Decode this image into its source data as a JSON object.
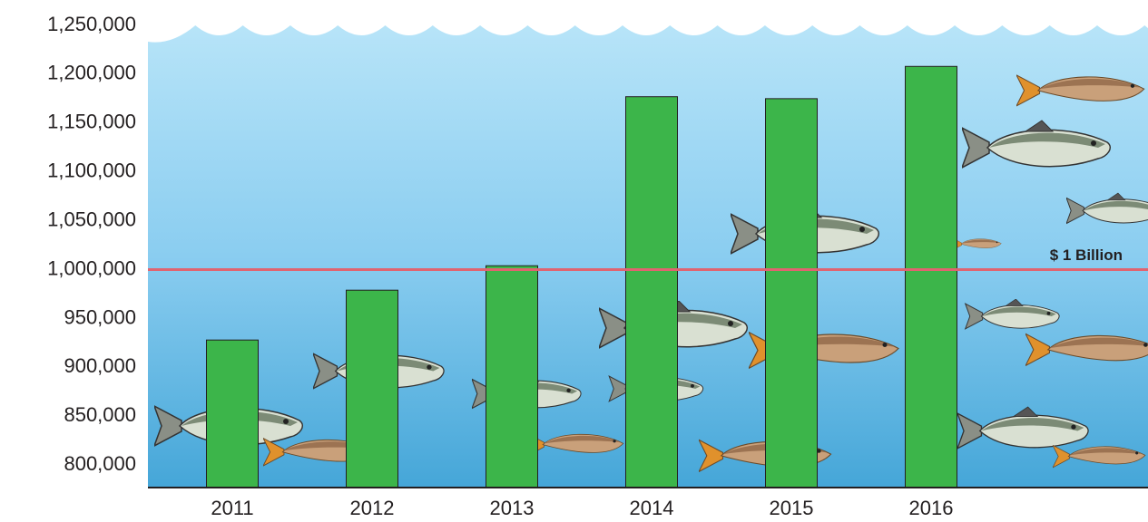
{
  "chart_data": {
    "type": "bar",
    "categories": [
      "2011",
      "2012",
      "2013",
      "2014",
      "2015",
      "2016"
    ],
    "values": [
      928000,
      979000,
      1004000,
      1177000,
      1175000,
      1208000
    ],
    "color": "#3cb54a",
    "ylim": [
      777000,
      1250000
    ],
    "yticks": [
      {
        "value": 800000,
        "label": "800,000"
      },
      {
        "value": 850000,
        "label": "850,000"
      },
      {
        "value": 900000,
        "label": "900,000"
      },
      {
        "value": 950000,
        "label": "950,000"
      },
      {
        "value": 1000000,
        "label": "1,000,000"
      },
      {
        "value": 1050000,
        "label": "1,050,000"
      },
      {
        "value": 1100000,
        "label": "1,100,000"
      },
      {
        "value": 1150000,
        "label": "1,150,000"
      },
      {
        "value": 1200000,
        "label": "1,200,000"
      },
      {
        "value": 1250000,
        "label": "1,250,000"
      }
    ],
    "reference_line": {
      "value": 1000000,
      "label": "$ 1 Billion",
      "color": "#e06470"
    }
  }
}
